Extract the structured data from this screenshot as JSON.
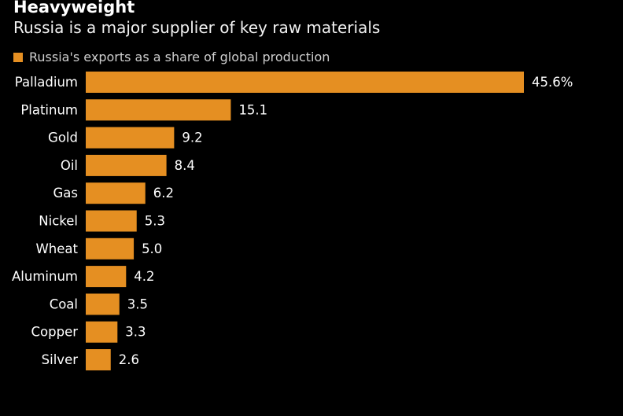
{
  "header": {
    "title": "Heavyweight",
    "subtitle": "Russia is a major supplier of key raw materials"
  },
  "colors": {
    "bar": "#E58F22",
    "background": "#000000"
  },
  "chart_data": {
    "type": "bar",
    "orientation": "horizontal",
    "title": "Heavyweight",
    "subtitle": "Russia is a major supplier of key raw materials",
    "legend": [
      "Russia's exports as a share of global production"
    ],
    "legend_position": "top-left",
    "categories": [
      "Palladium",
      "Platinum",
      "Gold",
      "Oil",
      "Gas",
      "Nickel",
      "Wheat",
      "Aluminum",
      "Coal",
      "Copper",
      "Silver"
    ],
    "values": [
      45.6,
      15.1,
      9.2,
      8.4,
      6.2,
      5.3,
      5.0,
      4.2,
      3.5,
      3.3,
      2.6
    ],
    "value_labels": [
      "45.6%",
      "15.1",
      "9.2",
      "8.4",
      "6.2",
      "5.3",
      "5.0",
      "4.2",
      "3.5",
      "3.3",
      "2.6"
    ],
    "xlim": [
      0,
      45.6
    ],
    "grid": false,
    "xlabel": "",
    "ylabel": ""
  }
}
